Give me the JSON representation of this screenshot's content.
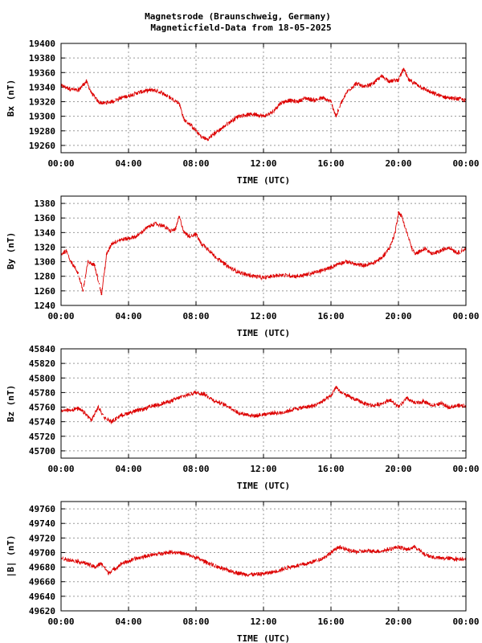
{
  "title": {
    "line1": "Magnetsrode (Braunschweig, Germany)",
    "line2": "Magneticfield-Data from 18-05-2025"
  },
  "colors": {
    "trace": "#dd0000",
    "grid": "#999999",
    "frame": "#000000"
  },
  "chart_data": [
    {
      "type": "line",
      "ylabel": "Bx (nT)",
      "xlabel": "TIME (UTC)",
      "xlim": [
        0,
        24
      ],
      "ylim": [
        19250,
        19400
      ],
      "yticks": [
        "19400",
        "19380",
        "19360",
        "19340",
        "19320",
        "19300",
        "19280",
        "19260"
      ],
      "xticks": [
        "00:00",
        "04:00",
        "08:00",
        "12:00",
        "16:00",
        "20:00",
        "00:00"
      ],
      "grid": true,
      "series": [
        {
          "x": [
            0,
            0.5,
            1.0,
            1.5,
            1.8,
            2.2,
            2.5,
            3.0,
            3.5,
            4.0,
            4.5,
            5.0,
            5.5,
            6.0,
            6.5,
            7.0,
            7.3,
            7.7,
            8.0,
            8.3,
            8.7,
            9.0,
            9.5,
            10.0,
            10.5,
            11.0,
            11.5,
            12.0,
            12.5,
            13.0,
            13.5,
            14.0,
            14.5,
            15.0,
            15.5,
            16.0,
            16.3,
            16.6,
            17.0,
            17.5,
            18.0,
            18.5,
            19.0,
            19.5,
            20.0,
            20.3,
            20.6,
            21.0,
            21.5,
            22.0,
            22.5,
            23.0,
            23.5,
            24.0
          ],
          "y": [
            19342,
            19338,
            19335,
            19348,
            19332,
            19320,
            19318,
            19320,
            19325,
            19328,
            19332,
            19335,
            19336,
            19332,
            19325,
            19318,
            19295,
            19288,
            19280,
            19272,
            19268,
            19275,
            19283,
            19292,
            19300,
            19302,
            19303,
            19300,
            19305,
            19318,
            19322,
            19320,
            19325,
            19322,
            19325,
            19320,
            19300,
            19318,
            19335,
            19345,
            19340,
            19345,
            19355,
            19348,
            19350,
            19365,
            19350,
            19345,
            19338,
            19332,
            19328,
            19325,
            19324,
            19322
          ]
        }
      ]
    },
    {
      "type": "line",
      "ylabel": "By (nT)",
      "xlabel": "TIME (UTC)",
      "xlim": [
        0,
        24
      ],
      "ylim": [
        1240,
        1390
      ],
      "yticks": [
        "1380",
        "1360",
        "1340",
        "1320",
        "1300",
        "1280",
        "1260",
        "1240"
      ],
      "xticks": [
        "00:00",
        "04:00",
        "08:00",
        "12:00",
        "16:00",
        "20:00",
        "00:00"
      ],
      "grid": true,
      "series": [
        {
          "x": [
            0,
            0.3,
            0.6,
            1.0,
            1.3,
            1.6,
            2.0,
            2.4,
            2.7,
            3.0,
            3.5,
            4.0,
            4.5,
            5.0,
            5.5,
            6.0,
            6.5,
            6.8,
            7.0,
            7.3,
            7.6,
            8.0,
            8.3,
            8.7,
            9.0,
            9.5,
            10.0,
            10.5,
            11.0,
            11.5,
            12.0,
            12.5,
            13.0,
            13.5,
            14.0,
            14.5,
            15.0,
            15.5,
            16.0,
            16.5,
            17.0,
            17.5,
            18.0,
            18.5,
            19.0,
            19.5,
            19.8,
            20.0,
            20.2,
            20.5,
            20.8,
            21.0,
            21.3,
            21.6,
            22.0,
            22.5,
            23.0,
            23.5,
            24.0
          ],
          "y": [
            1310,
            1315,
            1300,
            1285,
            1260,
            1300,
            1295,
            1255,
            1310,
            1325,
            1330,
            1332,
            1335,
            1345,
            1352,
            1350,
            1342,
            1345,
            1362,
            1340,
            1335,
            1338,
            1325,
            1318,
            1310,
            1300,
            1292,
            1286,
            1282,
            1280,
            1278,
            1280,
            1282,
            1281,
            1280,
            1282,
            1285,
            1288,
            1292,
            1298,
            1300,
            1296,
            1295,
            1298,
            1305,
            1320,
            1340,
            1368,
            1362,
            1340,
            1318,
            1310,
            1315,
            1318,
            1310,
            1315,
            1320,
            1312,
            1318
          ]
        }
      ]
    },
    {
      "type": "line",
      "ylabel": "Bz (nT)",
      "xlabel": "TIME (UTC)",
      "xlim": [
        0,
        24
      ],
      "ylim": [
        45690,
        45840
      ],
      "yticks": [
        "45840",
        "45820",
        "45800",
        "45780",
        "45760",
        "45740",
        "45720",
        "45700"
      ],
      "xticks": [
        "00:00",
        "04:00",
        "08:00",
        "12:00",
        "16:00",
        "20:00",
        "00:00"
      ],
      "grid": true,
      "series": [
        {
          "x": [
            0,
            0.5,
            1.0,
            1.4,
            1.8,
            2.2,
            2.6,
            3.0,
            3.5,
            4.0,
            4.5,
            5.0,
            5.5,
            6.0,
            6.5,
            7.0,
            7.5,
            8.0,
            8.5,
            9.0,
            9.5,
            10.0,
            10.5,
            11.0,
            11.5,
            12.0,
            12.5,
            13.0,
            13.5,
            14.0,
            14.5,
            15.0,
            15.5,
            16.0,
            16.3,
            16.6,
            17.0,
            17.5,
            18.0,
            18.5,
            19.0,
            19.5,
            20.0,
            20.5,
            21.0,
            21.5,
            22.0,
            22.5,
            23.0,
            23.5,
            24.0
          ],
          "y": [
            45755,
            45756,
            45758,
            45752,
            45742,
            45760,
            45745,
            45740,
            45748,
            45752,
            45755,
            45758,
            45762,
            45765,
            45768,
            45773,
            45777,
            45780,
            45778,
            45770,
            45765,
            45760,
            45752,
            45750,
            45748,
            45750,
            45752,
            45752,
            45755,
            45758,
            45760,
            45762,
            45768,
            45775,
            45788,
            45780,
            45775,
            45770,
            45765,
            45762,
            45765,
            45770,
            45760,
            45772,
            45765,
            45768,
            45762,
            45765,
            45760,
            45762,
            45762
          ]
        }
      ]
    },
    {
      "type": "line",
      "ylabel": "|B| (nT)",
      "xlabel": "TIME (UTC)",
      "xlim": [
        0,
        24
      ],
      "ylim": [
        49620,
        49770
      ],
      "yticks": [
        "49760",
        "49740",
        "49720",
        "49700",
        "49680",
        "49660",
        "49640",
        "49620"
      ],
      "xticks": [
        "00:00",
        "04:00",
        "08:00",
        "12:00",
        "16:00",
        "20:00",
        "00:00"
      ],
      "grid": true,
      "series": [
        {
          "x": [
            0,
            0.5,
            1.0,
            1.5,
            2.0,
            2.4,
            2.8,
            3.2,
            3.6,
            4.0,
            4.5,
            5.0,
            5.5,
            6.0,
            6.5,
            7.0,
            7.5,
            8.0,
            8.5,
            9.0,
            9.5,
            10.0,
            10.5,
            11.0,
            11.5,
            12.0,
            12.5,
            13.0,
            13.5,
            14.0,
            14.5,
            15.0,
            15.5,
            16.0,
            16.5,
            17.0,
            17.5,
            18.0,
            18.5,
            19.0,
            19.5,
            20.0,
            20.5,
            21.0,
            21.5,
            22.0,
            22.5,
            23.0,
            23.5,
            24.0
          ],
          "y": [
            49692,
            49690,
            49688,
            49685,
            49680,
            49685,
            49672,
            49678,
            49685,
            49688,
            49692,
            49695,
            49697,
            49699,
            49701,
            49700,
            49697,
            49693,
            49688,
            49683,
            49678,
            49675,
            49672,
            49670,
            49670,
            49671,
            49673,
            49676,
            49680,
            49682,
            49684,
            49688,
            49692,
            49700,
            49708,
            49703,
            49701,
            49702,
            49702,
            49702,
            49705,
            49708,
            49704,
            49708,
            49698,
            49694,
            49692,
            49692,
            49691,
            49692
          ]
        }
      ]
    }
  ]
}
